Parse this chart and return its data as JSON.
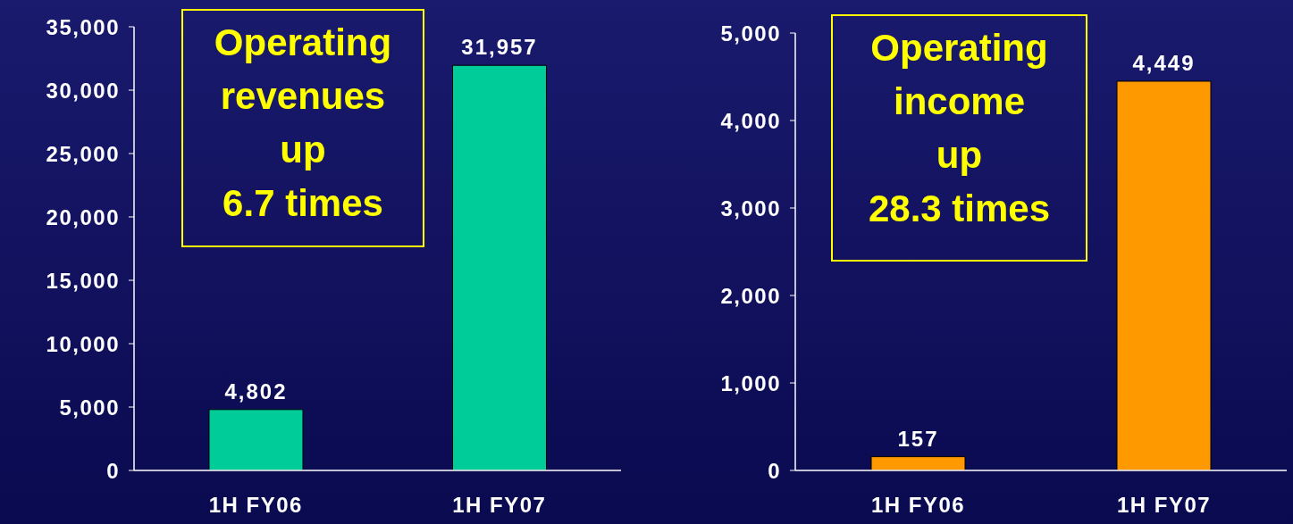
{
  "chart_data": [
    {
      "type": "bar",
      "annotations": [
        "Operating\nrevenues\nup\n 6.7 times"
      ],
      "categories": [
        "1H FY06",
        "1H FY07"
      ],
      "values": [
        4802,
        31957
      ],
      "value_labels": [
        "4,802",
        "31,957"
      ],
      "color": "#00cc99",
      "ylim": [
        0,
        35000
      ],
      "yticks": [
        {
          "value": 0,
          "label": "0"
        },
        {
          "value": 5000,
          "label": "5,000"
        },
        {
          "value": 10000,
          "label": "10,000"
        },
        {
          "value": 15000,
          "label": "15,000"
        },
        {
          "value": 20000,
          "label": "20,000"
        },
        {
          "value": 25000,
          "label": "25,000"
        },
        {
          "value": 30000,
          "label": "30,000"
        },
        {
          "value": 35000,
          "label": "35,000"
        }
      ],
      "grid": false,
      "legend": false
    },
    {
      "type": "bar",
      "annotations": [
        "Operating\nincome\nup\n28.3 times"
      ],
      "categories": [
        "1H FY06",
        "1H FY07"
      ],
      "values": [
        157,
        4449
      ],
      "value_labels": [
        "157",
        "4,449"
      ],
      "color": "#ff9900",
      "ylim": [
        0,
        5000
      ],
      "yticks": [
        {
          "value": 0,
          "label": "0"
        },
        {
          "value": 1000,
          "label": "1,000"
        },
        {
          "value": 2000,
          "label": "2,000"
        },
        {
          "value": 3000,
          "label": "3,000"
        },
        {
          "value": 4000,
          "label": "4,000"
        },
        {
          "value": 5000,
          "label": "5,000"
        }
      ],
      "grid": false,
      "legend": false
    }
  ]
}
